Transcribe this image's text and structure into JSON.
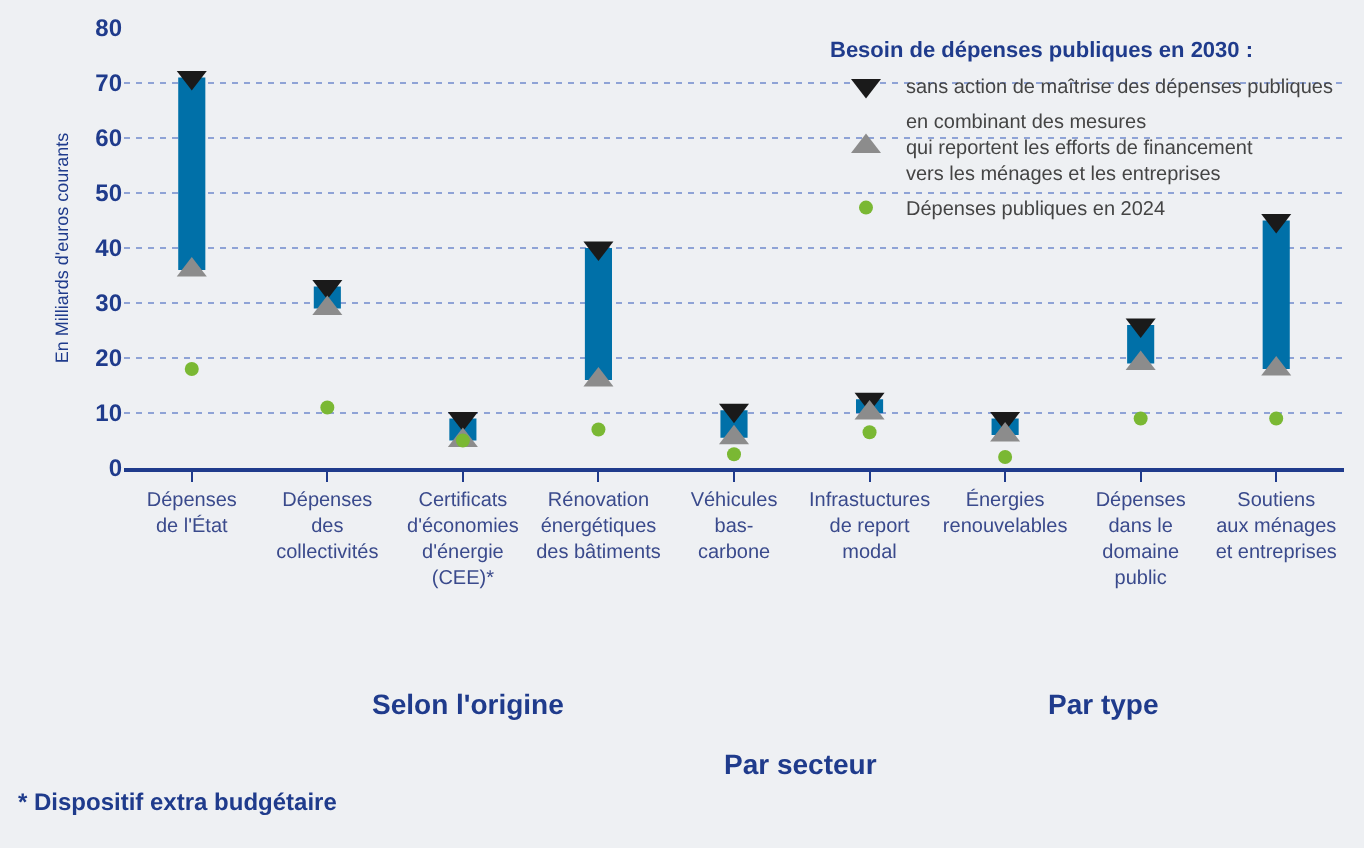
{
  "chart_data": {
    "type": "bar",
    "ylabel": "En Milliards d'euros courants",
    "legend_title": "Besoin de dépenses publiques en 2030 :",
    "legend": "top right",
    "grid": "y",
    "categories": [
      "Dépenses\nde l'État",
      "Dépenses\ndes\ncollectivités",
      "Certificats\nd'économies\nd'énergie\n(CEE)*",
      "Rénovation\nénergétiques\ndes bâtiments",
      "Véhicules\nbas-\ncarbone",
      "Infrastuctures\nde report\nmodal",
      "Énergies\nrenouvelables",
      "Dépenses\ndans le\ndomaine\npublic",
      "Soutiens\naux ménages\net entreprises"
    ],
    "ylim": [
      0,
      80
    ],
    "yticks": [
      0,
      10,
      20,
      30,
      40,
      50,
      60,
      70,
      80
    ],
    "series": [
      {
        "color": "#0070a8",
        "base": [
          36,
          29,
          5,
          16,
          5.5,
          10,
          6,
          19,
          18
        ],
        "values": [
          35,
          4,
          4,
          24,
          5,
          2.5,
          3,
          7,
          27
        ]
      },
      {
        "type": "scatter",
        "name": "sans action de maîtrise des dépenses publiques",
        "color": "#1a1a1a",
        "marker": "triangle-down",
        "values": [
          71,
          33,
          9,
          40,
          10.5,
          12.5,
          9,
          26,
          45
        ]
      },
      {
        "type": "scatter",
        "name": "en combinant des mesures\nqui reportent les efforts de financement\nvers les ménages et les entreprises",
        "color": "#8c8c8c",
        "marker": "triangle",
        "values": [
          36,
          29,
          5,
          16,
          5.5,
          10,
          6,
          19,
          18
        ]
      },
      {
        "type": "scatter",
        "name": "Dépenses publiques en 2024",
        "color": "#7ab833",
        "marker": "circle",
        "values": [
          18,
          11,
          5,
          7,
          2.5,
          6.5,
          2,
          9,
          9
        ]
      }
    ],
    "annotations": [
      "Selon l'origine",
      "Par secteur",
      "Par type",
      "* Dispositif extra budgétaire"
    ]
  }
}
